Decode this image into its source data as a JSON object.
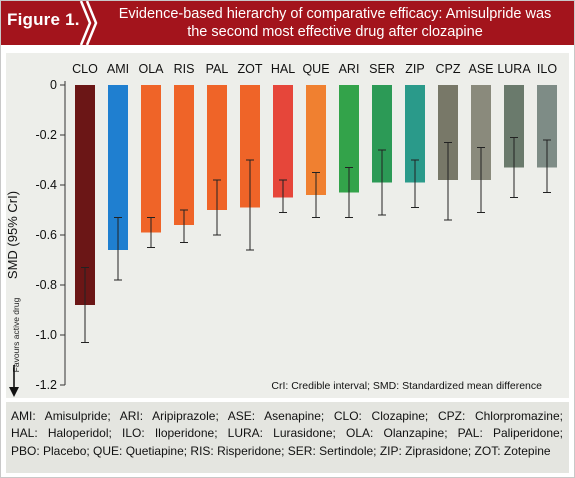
{
  "figure_label": "Figure 1.",
  "title_line1": "Evidence-based hierarchy of comparative efficacy: Amisulpride was",
  "title_line2": "the second most effective drug after clozapine",
  "colors": {
    "header": "#a3141c",
    "plot_bg": "#edeeea",
    "footnote_bg": "#e4e5e0"
  },
  "chart_data": {
    "type": "bar",
    "categories": [
      "CLO",
      "AMI",
      "OLA",
      "RIS",
      "PAL",
      "ZOT",
      "HAL",
      "QUE",
      "ARI",
      "SER",
      "ZIP",
      "CPZ",
      "ASE",
      "LURA",
      "ILO"
    ],
    "values": [
      -0.88,
      -0.66,
      -0.59,
      -0.56,
      -0.5,
      -0.49,
      -0.45,
      -0.44,
      -0.43,
      -0.39,
      -0.39,
      -0.38,
      -0.38,
      -0.33,
      -0.33
    ],
    "ci_low": [
      -1.03,
      -0.78,
      -0.65,
      -0.63,
      -0.6,
      -0.66,
      -0.51,
      -0.53,
      -0.53,
      -0.52,
      -0.49,
      -0.54,
      -0.51,
      -0.45,
      -0.43
    ],
    "ci_high": [
      -0.73,
      -0.53,
      -0.53,
      -0.5,
      -0.38,
      -0.3,
      -0.38,
      -0.35,
      -0.33,
      -0.26,
      -0.3,
      -0.23,
      -0.25,
      -0.21,
      -0.22
    ],
    "bar_colors": [
      "#6b1616",
      "#1f7fd0",
      "#ef6428",
      "#ef6428",
      "#ef6428",
      "#ef6428",
      "#e6463a",
      "#f08030",
      "#33a34a",
      "#2c9a56",
      "#2a9a8a",
      "#787868",
      "#8a8a7c",
      "#6a7a6c",
      "#7e8c86"
    ],
    "ylabel": "SMD (95% CrI)",
    "ylim": [
      -1.2,
      0
    ],
    "yticks": [
      0,
      -0.2,
      -0.4,
      -0.6,
      -0.8,
      -1.0,
      -1.2
    ],
    "ytick_labels": [
      "0",
      "-0.2",
      "-0.4",
      "-0.6",
      "-0.8",
      "-1.0",
      "-1.2"
    ],
    "y_note": "Favours active drug",
    "annotation": "CrI: Credible interval; SMD: Standardized mean difference"
  },
  "footnote_lines": [
    "AMI: Amisulpride; ARI: Aripiprazole; ASE: Asenapine; CLO: Clozapine; CPZ: Chlorpromazine;",
    "HAL: Haloperidol; ILO: Iloperidone; LURA: Lurasidone; OLA: Olanzapine; PAL: Paliperidone;",
    "PBO: Placebo; QUE: Quetiapine; RIS: Risperidone; SER: Sertindole; ZIP: Ziprasidone; ZOT: Zotepine"
  ]
}
